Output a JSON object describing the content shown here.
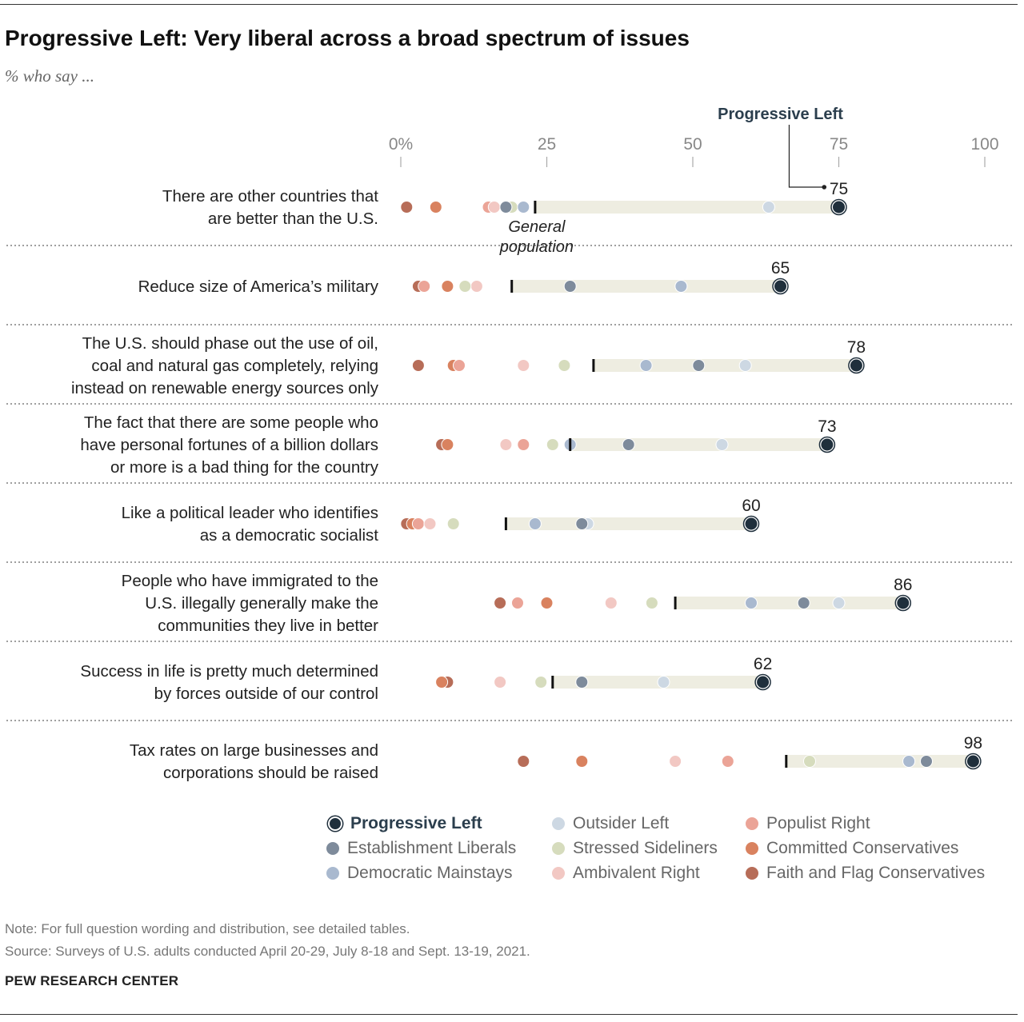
{
  "title": "Progressive Left: Very liberal across a broad spectrum of issues",
  "subtitle": "% who say ...",
  "chart_data": {
    "type": "dot",
    "x_ticks": [
      "0%",
      "25",
      "50",
      "75",
      "100"
    ],
    "x_tick_values": [
      0,
      25,
      50,
      75,
      100
    ],
    "xlim": [
      0,
      100
    ],
    "highlight_series": "Progressive Left",
    "highlight_callout": "Progressive Left",
    "general_population_label": "General population",
    "series": [
      {
        "name": "Progressive Left",
        "color": "#1f2f3c"
      },
      {
        "name": "Establishment Liberals",
        "color": "#7e8b9b"
      },
      {
        "name": "Democratic Mainstays",
        "color": "#a9b9cf"
      },
      {
        "name": "Outsider Left",
        "color": "#cdd8e3"
      },
      {
        "name": "Stressed Sideliners",
        "color": "#d6dcbd"
      },
      {
        "name": "Ambivalent Right",
        "color": "#f2c8c3"
      },
      {
        "name": "Populist Right",
        "color": "#eba497"
      },
      {
        "name": "Committed Conservatives",
        "color": "#d9825f"
      },
      {
        "name": "Faith and Flag Conservatives",
        "color": "#b76d58"
      }
    ],
    "categories": [
      {
        "label": "There are other countries that are better than the U.S.",
        "general": 23,
        "values": [
          75,
          18,
          21,
          63,
          19,
          16,
          15,
          6,
          1
        ]
      },
      {
        "label": "Reduce size of America’s military",
        "general": 19,
        "values": [
          65,
          29,
          48,
          48,
          11,
          13,
          4,
          8,
          3
        ]
      },
      {
        "label": "The U.S. should phase out the use of oil, coal and natural gas completely, relying instead on renewable energy sources only",
        "general": 33,
        "values": [
          78,
          51,
          42,
          59,
          28,
          21,
          10,
          9,
          3
        ]
      },
      {
        "label": "The fact that there are some people who have personal fortunes of a billion dollars or more is a bad thing for the country",
        "general": 29,
        "values": [
          73,
          39,
          29,
          55,
          26,
          18,
          21,
          8,
          7
        ]
      },
      {
        "label": "Like a political leader who identifies as a democratic socialist",
        "general": 18,
        "values": [
          60,
          31,
          23,
          32,
          9,
          5,
          3,
          2,
          1
        ]
      },
      {
        "label": "People who have immigrated to the U.S. illegally generally make the communities they live in better",
        "general": 47,
        "values": [
          86,
          69,
          60,
          75,
          43,
          36,
          20,
          25,
          17
        ]
      },
      {
        "label": "Success in life is pretty much determined by forces outside of our control",
        "general": 26,
        "values": [
          62,
          31,
          31,
          45,
          24,
          17,
          17,
          7,
          8
        ]
      },
      {
        "label": "Tax rates on large businesses and corporations should be raised",
        "general": 66,
        "values": [
          98,
          90,
          87,
          87,
          70,
          47,
          56,
          31,
          21
        ]
      }
    ]
  },
  "legend": {
    "items": [
      "Progressive Left",
      "Establishment Liberals",
      "Democratic Mainstays",
      "Outsider Left",
      "Stressed Sideliners",
      "Ambivalent Right",
      "Populist Right",
      "Committed Conservatives",
      "Faith and Flag Conservatives"
    ]
  },
  "note": "Note: For full question wording and distribution, see detailed tables.",
  "source": "Source: Surveys of U.S. adults conducted April 20-29, July 8-18 and Sept. 13-19, 2021.",
  "org": "PEW RESEARCH CENTER"
}
